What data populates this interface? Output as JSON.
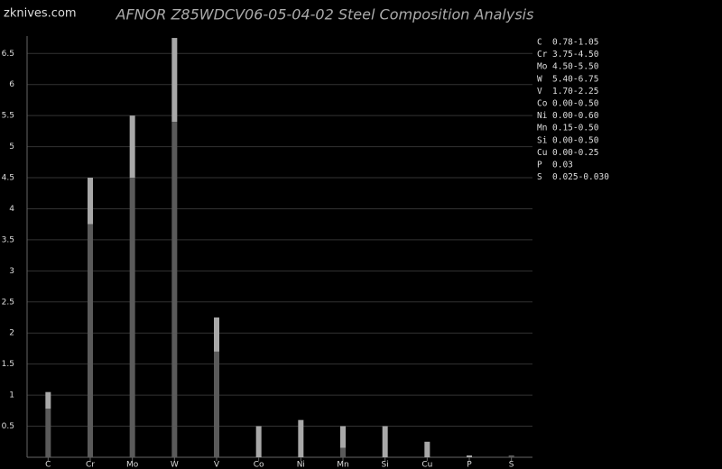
{
  "watermark": "zknives.com",
  "chart_data": {
    "type": "range-bar",
    "title": "AFNOR Z85WDCV06-05-04-02 Steel Composition Analysis",
    "categories": [
      "C",
      "Cr",
      "Mo",
      "W",
      "V",
      "Co",
      "Ni",
      "Mn",
      "Si",
      "Cu",
      "P",
      "S"
    ],
    "min_values": [
      0.78,
      3.75,
      4.5,
      5.4,
      1.7,
      0,
      0,
      0.15,
      0,
      0,
      null,
      0.025
    ],
    "max_values": [
      1.05,
      4.5,
      5.5,
      6.75,
      2.25,
      0.5,
      0.6,
      0.5,
      0.5,
      0.25,
      0.03,
      0.03
    ],
    "range_labels": [
      "0.78-1.05",
      "3.75-4.50",
      "4.50-5.50",
      "5.40-6.75",
      "1.70-2.25",
      "0.00-0.50",
      "0.00-0.60",
      "0.15-0.50",
      "0.00-0.50",
      "0.00-0.25",
      "0.03",
      "0.025-0.030"
    ],
    "min_color": "#5a5a5a",
    "max_color": "#a8a8a8",
    "ylim": [
      0,
      6.78
    ],
    "yticks": [
      0.5,
      1,
      1.5,
      2,
      2.5,
      3,
      3.5,
      4,
      4.5,
      5,
      5.5,
      6,
      6.5
    ],
    "grid": true
  }
}
